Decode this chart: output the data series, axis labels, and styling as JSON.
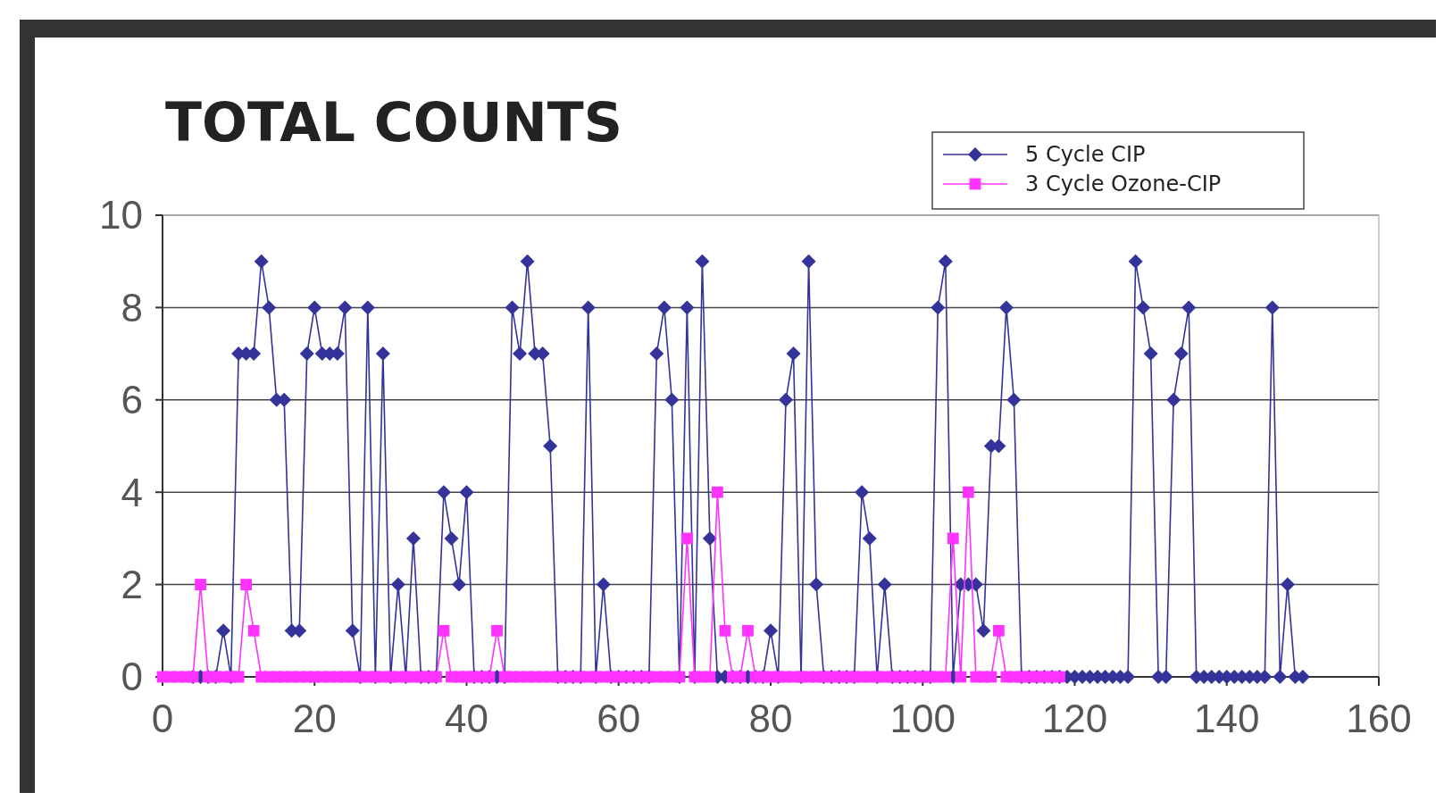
{
  "chart_data": {
    "type": "line",
    "title": "TOTAL COUNTS",
    "x": [
      0,
      1,
      2,
      3,
      4,
      5,
      6,
      7,
      8,
      9,
      10,
      11,
      12,
      13,
      14,
      15,
      16,
      17,
      18,
      19,
      20,
      21,
      22,
      23,
      24,
      25,
      26,
      27,
      28,
      29,
      30,
      31,
      32,
      33,
      34,
      35,
      36,
      37,
      38,
      39,
      40,
      41,
      42,
      43,
      44,
      45,
      46,
      47,
      48,
      49,
      50,
      51,
      52,
      53,
      54,
      55,
      56,
      57,
      58,
      59,
      60,
      61,
      62,
      63,
      64,
      65,
      66,
      67,
      68,
      69,
      70,
      71,
      72,
      73,
      74,
      75,
      76,
      77,
      78,
      79,
      80,
      81,
      82,
      83,
      84,
      85,
      86,
      87,
      88,
      89,
      90,
      91,
      92,
      93,
      94,
      95,
      96,
      97,
      98,
      99,
      100,
      101,
      102,
      103,
      104,
      105,
      106,
      107,
      108,
      109,
      110,
      111,
      112,
      113,
      114,
      115,
      116,
      117,
      118,
      119,
      120,
      121,
      122,
      123,
      124,
      125,
      126,
      127,
      128,
      129,
      130,
      131,
      132,
      133,
      134,
      135,
      136,
      137,
      138,
      139,
      140,
      141,
      142,
      143,
      144,
      145,
      146,
      147,
      148,
      149,
      150
    ],
    "series": [
      {
        "name": "5 Cycle CIP",
        "color": "#333399",
        "marker": "diamond",
        "values": [
          null,
          null,
          null,
          null,
          0,
          0,
          0,
          0,
          1,
          0,
          7,
          7,
          7,
          9,
          8,
          6,
          6,
          1,
          1,
          7,
          8,
          7,
          7,
          7,
          8,
          1,
          0,
          8,
          0,
          7,
          0,
          2,
          0,
          3,
          0,
          0,
          0,
          4,
          3,
          2,
          4,
          0,
          0,
          0,
          0,
          0,
          8,
          7,
          9,
          7,
          7,
          5,
          0,
          0,
          0,
          0,
          8,
          0,
          2,
          0,
          0,
          0,
          0,
          0,
          0,
          7,
          8,
          6,
          0,
          8,
          0,
          9,
          3,
          0,
          0,
          0,
          0,
          0,
          0,
          0,
          1,
          0,
          6,
          7,
          0,
          9,
          2,
          0,
          0,
          0,
          0,
          0,
          4,
          3,
          0,
          2,
          0,
          0,
          0,
          0,
          0,
          0,
          8,
          9,
          0,
          2,
          2,
          2,
          1,
          5,
          5,
          8,
          6,
          0,
          0,
          0,
          0,
          0,
          0,
          0,
          0,
          0,
          0,
          0,
          0,
          0,
          0,
          0,
          9,
          8,
          7,
          0,
          0,
          6,
          7,
          8,
          0,
          0,
          0,
          0,
          0,
          0,
          0,
          0,
          0,
          0,
          8,
          0,
          2,
          0,
          0
        ]
      },
      {
        "name": "3 Cycle Ozone-CIP",
        "color": "#ff33ff",
        "marker": "square",
        "values": [
          0,
          0,
          0,
          0,
          0,
          2,
          0,
          0,
          0,
          0,
          0,
          2,
          1,
          0,
          0,
          0,
          0,
          0,
          0,
          0,
          0,
          0,
          0,
          0,
          0,
          0,
          0,
          0,
          0,
          0,
          0,
          0,
          0,
          0,
          0,
          0,
          0,
          1,
          0,
          0,
          0,
          0,
          0,
          0,
          1,
          0,
          0,
          0,
          0,
          0,
          0,
          0,
          0,
          0,
          0,
          0,
          0,
          0,
          0,
          0,
          0,
          0,
          0,
          0,
          0,
          0,
          0,
          0,
          0,
          3,
          0,
          0,
          0,
          4,
          1,
          0,
          0,
          1,
          0,
          0,
          0,
          0,
          0,
          0,
          0,
          0,
          0,
          0,
          0,
          0,
          0,
          0,
          0,
          0,
          0,
          0,
          0,
          0,
          0,
          0,
          0,
          0,
          0,
          0,
          3,
          0,
          4,
          0,
          0,
          0,
          1,
          0,
          0,
          0,
          0,
          0,
          0,
          0,
          0,
          null,
          null,
          null,
          null,
          null,
          null,
          null,
          null,
          null,
          null,
          null,
          null,
          null,
          null,
          null,
          null,
          null,
          null,
          null,
          null,
          null,
          null,
          null,
          null,
          null,
          null,
          null,
          null,
          null,
          null,
          null,
          null
        ]
      }
    ],
    "xlim": [
      0,
      160
    ],
    "xticks": [
      0,
      20,
      40,
      60,
      80,
      100,
      120,
      140,
      160
    ],
    "ylim": [
      0,
      10
    ],
    "yticks": [
      0,
      2,
      4,
      6,
      8,
      10
    ],
    "grid": "y",
    "legend": "top right",
    "line_style": "solid"
  }
}
